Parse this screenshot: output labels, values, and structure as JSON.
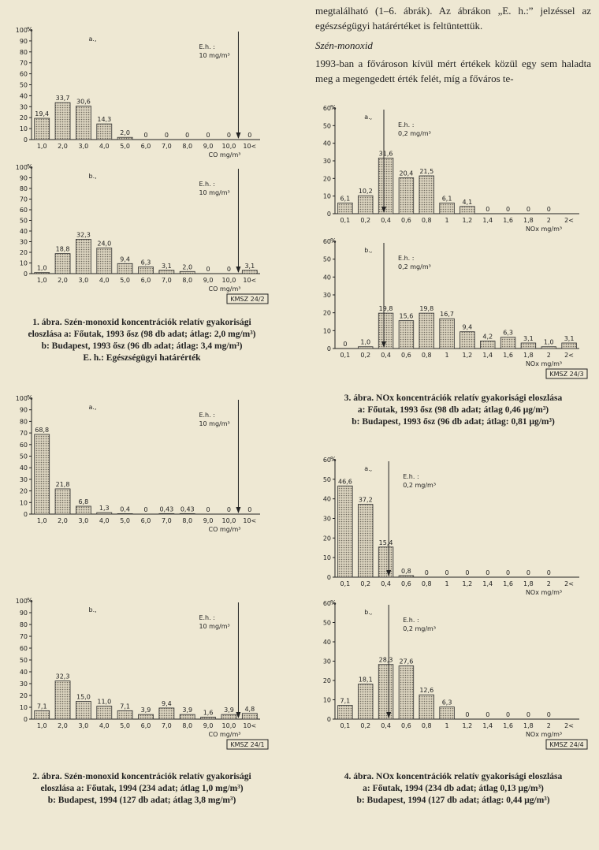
{
  "paragraphs": [
    "megtalálható (1–6. ábrák). Az ábrákon „E. h.:” jelzéssel az egészségügyi határértéket is feltüntettük.",
    "1993-ban a fővároson kívül mért értékek közül egy sem haladta meg a megengedett érték felét, míg a főváros te-"
  ],
  "section_title": "Szén-monoxid",
  "captions": [
    [
      "1. ábra. Szén-monoxid koncentrációk relatív gyakorisági",
      "eloszlása a: Főutak, 1993 ősz (98 db adat; átlag: 2,0 mg/m³)",
      "b: Budapest, 1993 ősz (96 db adat; átlag: 3,4 mg/m³)",
      "E. h.: Egészségügyi határérték"
    ],
    [
      "2. ábra. Szén-monoxid koncentrációk relatív gyakorisági",
      "eloszlása a: Főutak, 1994 (234 adat; átlag 1,0 mg/m³)",
      "b: Budapest, 1994 (127 db adat; átlag 3,8 mg/m³)"
    ],
    [
      "3. ábra. NOx koncentrációk relatív gyakorisági eloszlása",
      "a: Főutak, 1993 ősz (98 db adat; átlag 0,46 μg/m³)",
      "b: Budapest, 1993 ősz (96 db adat; átlag: 0,81 μg/m³)"
    ],
    [
      "4. ábra. NOx koncentrációk relatív gyakorisági eloszlása",
      "a: Főutak, 1994 (234 db adat; átlag 0,13 μg/m³)",
      "b: Budapest, 1994 (127 db adat; átlag: 0,44 μg/m³)"
    ]
  ],
  "chart_data": [
    {
      "type": "bar",
      "panel": "a.,",
      "eh_label": "E.h. :",
      "eh_value_label": "10 mg/m³",
      "y_unit": "%",
      "x_label": "CO mg/m³",
      "color": "#a9a392",
      "categories": [
        "1,0",
        "2,0",
        "3,0",
        "4,0",
        "5,0",
        "6,0",
        "7,0",
        "8,0",
        "9,0",
        "10,0",
        "10<"
      ],
      "values": [
        19.4,
        33.7,
        30.6,
        14.3,
        2.0,
        0,
        0,
        0,
        0,
        0,
        0
      ],
      "value_labels": [
        "19,4",
        "33,7",
        "30,6",
        "14,3",
        "2,0",
        "0",
        "0",
        "0",
        "0",
        "0",
        "0"
      ],
      "ylim": [
        0,
        100
      ],
      "yticks": [
        0,
        10,
        20,
        30,
        40,
        50,
        60,
        70,
        80,
        90,
        100
      ]
    },
    {
      "type": "bar",
      "panel": "b.,",
      "eh_label": "E.h. :",
      "eh_value_label": "10 mg/m³",
      "y_unit": "%",
      "x_label": "CO mg/m³",
      "stamp": "KMSZ 24/2",
      "color": "#a9a392",
      "categories": [
        "1,0",
        "2,0",
        "3,0",
        "4,0",
        "5,0",
        "6,0",
        "7,0",
        "8,0",
        "9,0",
        "10,0",
        "10<"
      ],
      "values": [
        1.0,
        18.8,
        32.3,
        24.0,
        9.4,
        6.3,
        3.1,
        2.0,
        0,
        0,
        3.1
      ],
      "value_labels": [
        "1,0",
        "18,8",
        "32,3",
        "24,0",
        "9,4",
        "6,3",
        "3,1",
        "2,0",
        "0",
        "0",
        "3,1"
      ],
      "ylim": [
        0,
        100
      ],
      "yticks": [
        0,
        10,
        20,
        30,
        40,
        50,
        60,
        70,
        80,
        90,
        100
      ]
    },
    {
      "type": "bar",
      "panel": "a.,",
      "eh_label": "E.h. :",
      "eh_value_label": "10 mg/m³",
      "y_unit": "%",
      "x_label": "CO mg/m³",
      "color": "#a9a392",
      "categories": [
        "1,0",
        "2,0",
        "3,0",
        "4,0",
        "5,0",
        "6,0",
        "7,0",
        "8,0",
        "9,0",
        "10,0",
        "10<"
      ],
      "values": [
        68.8,
        21.8,
        6.8,
        1.3,
        0.4,
        0,
        0.43,
        0.43,
        0,
        0,
        0
      ],
      "value_labels": [
        "68,8",
        "21,8",
        "6,8",
        "1,3",
        "0,4",
        "0",
        "0,43",
        "0,43",
        "0",
        "0",
        "0"
      ],
      "ylim": [
        0,
        100
      ],
      "yticks": [
        0,
        10,
        20,
        30,
        40,
        50,
        60,
        70,
        80,
        90,
        100
      ]
    },
    {
      "type": "bar",
      "panel": "b.,",
      "eh_label": "E.h. :",
      "eh_value_label": "10 mg/m³",
      "y_unit": "%",
      "x_label": "CO mg/m³",
      "stamp": "KMSZ 24/1",
      "color": "#a9a392",
      "categories": [
        "1,0",
        "2,0",
        "3,0",
        "4,0",
        "5,0",
        "6,0",
        "7,0",
        "8,0",
        "9,0",
        "10,0",
        "10<"
      ],
      "values": [
        7.1,
        32.3,
        15.0,
        11.0,
        7.1,
        3.9,
        9.4,
        3.9,
        1.6,
        3.9,
        4.8
      ],
      "value_labels": [
        "7,1",
        "32,3",
        "15,0",
        "11,0",
        "7,1",
        "3,9",
        "9,4",
        "3,9",
        "1,6",
        "3,9",
        "4,8"
      ],
      "ylim": [
        0,
        100
      ],
      "yticks": [
        0,
        10,
        20,
        30,
        40,
        50,
        60,
        70,
        80,
        90,
        100
      ]
    },
    {
      "type": "bar",
      "panel": "a.,",
      "eh_label": "E.h. :",
      "eh_value_label": "0,2 mg/m³",
      "y_unit": "%",
      "x_label": "NOx mg/m³",
      "color": "#a9a392",
      "categories": [
        "0,1",
        "0,2",
        "0,4",
        "0,6",
        "0,8",
        "1",
        "1,2",
        "1,4",
        "1,6",
        "1,8",
        "2",
        "2<"
      ],
      "values": [
        6.1,
        10.2,
        31.6,
        20.4,
        21.5,
        6.1,
        4.1,
        0,
        0,
        0,
        0,
        null
      ],
      "value_labels": [
        "6,1",
        "10,2",
        "31,6",
        "20,4",
        "21,5",
        "6,1",
        "4,1",
        "0",
        "0",
        "0",
        "0",
        null
      ],
      "ylim": [
        0,
        60
      ],
      "yticks": [
        0,
        10,
        20,
        30,
        40,
        50,
        60
      ]
    },
    {
      "type": "bar",
      "panel": "b.,",
      "eh_label": "E.h. :",
      "eh_value_label": "0,2 mg/m³",
      "y_unit": "%",
      "x_label": "NOx mg/m³",
      "stamp": "KMSZ 24/3",
      "color": "#a9a392",
      "categories": [
        "0,1",
        "0,2",
        "0,4",
        "0,6",
        "0,8",
        "1",
        "1,2",
        "1,4",
        "1,6",
        "1,8",
        "2",
        "2<"
      ],
      "values": [
        0,
        1.0,
        19.8,
        15.6,
        19.8,
        16.7,
        9.4,
        4.2,
        6.3,
        3.1,
        1.0,
        3.1
      ],
      "value_labels": [
        "0",
        "1,0",
        "19,8",
        "15,6",
        "19,8",
        "16,7",
        "9,4",
        "4,2",
        "6,3",
        "3,1",
        "1,0",
        "3,1"
      ],
      "ylim": [
        0,
        60
      ],
      "yticks": [
        0,
        10,
        20,
        30,
        40,
        50,
        60
      ]
    },
    {
      "type": "bar",
      "panel": "a.,",
      "eh_label": "E.h. :",
      "eh_value_label": "0,2 mg/m³",
      "y_unit": "%",
      "x_label": "NOx mg/m³",
      "color": "#a9a392",
      "categories": [
        "0,1",
        "0,2",
        "0,4",
        "0,6",
        "0,8",
        "1",
        "1,2",
        "1,4",
        "1,6",
        "1,8",
        "2",
        "2<"
      ],
      "values": [
        46.6,
        37.2,
        15.4,
        0.8,
        0,
        0,
        0,
        0,
        0,
        0,
        0,
        null
      ],
      "value_labels": [
        "46,6",
        "37,2",
        "15,4",
        "0,8",
        "0",
        "0",
        "0",
        "0",
        "0",
        "0",
        "0",
        null
      ],
      "ylim": [
        0,
        60
      ],
      "yticks": [
        0,
        10,
        20,
        30,
        40,
        50,
        60
      ]
    },
    {
      "type": "bar",
      "panel": "b.,",
      "eh_label": "E.h. :",
      "eh_value_label": "0,2 mg/m³",
      "y_unit": "%",
      "x_label": "NOx mg/m³",
      "stamp": "KMSZ 24/4",
      "color": "#a9a392",
      "categories": [
        "0,1",
        "0,2",
        "0,4",
        "0,6",
        "0,8",
        "1",
        "1,2",
        "1,4",
        "1,6",
        "1,8",
        "2",
        "2<"
      ],
      "values": [
        7.1,
        18.1,
        28.3,
        27.6,
        12.6,
        6.3,
        0,
        0,
        0,
        0,
        0,
        null
      ],
      "value_labels": [
        "7,1",
        "18,1",
        "28,3",
        "27,6",
        "12,6",
        "6,3",
        "0",
        "0",
        "0",
        "0",
        "0",
        null
      ],
      "ylim": [
        0,
        60
      ],
      "yticks": [
        0,
        10,
        20,
        30,
        40,
        50,
        60
      ]
    }
  ]
}
